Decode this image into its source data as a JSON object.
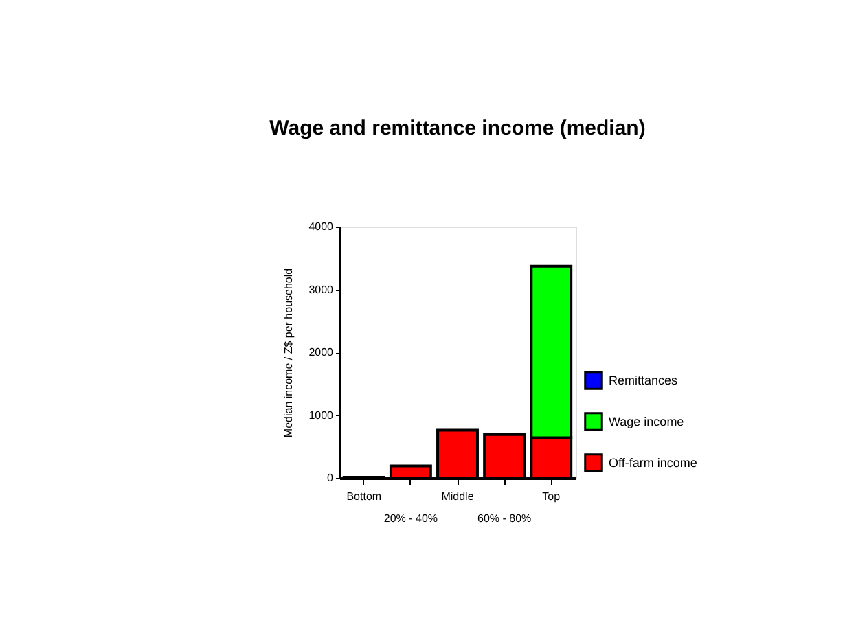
{
  "chart_data": {
    "type": "bar",
    "title": "Wage and remittance income (median)",
    "ylabel": "Median income / Z$ per household",
    "categories": [
      "Bottom",
      "20% - 40%",
      "Middle",
      "60% - 80%",
      "Top"
    ],
    "stacked": true,
    "ylim": [
      0,
      4000
    ],
    "yticks": [
      0,
      1000,
      2000,
      3000,
      4000
    ],
    "grid": false,
    "legend": "right",
    "series": [
      {
        "name": "Off-farm income",
        "color": "#ff0000",
        "values": [
          10,
          190,
          760,
          690,
          640
        ]
      },
      {
        "name": "Wage income",
        "color": "#00ff00",
        "values": [
          null,
          null,
          null,
          null,
          2730
        ]
      },
      {
        "name": "Remittances",
        "color": "#0000ff",
        "values": [
          null,
          null,
          null,
          null,
          null
        ]
      }
    ]
  }
}
